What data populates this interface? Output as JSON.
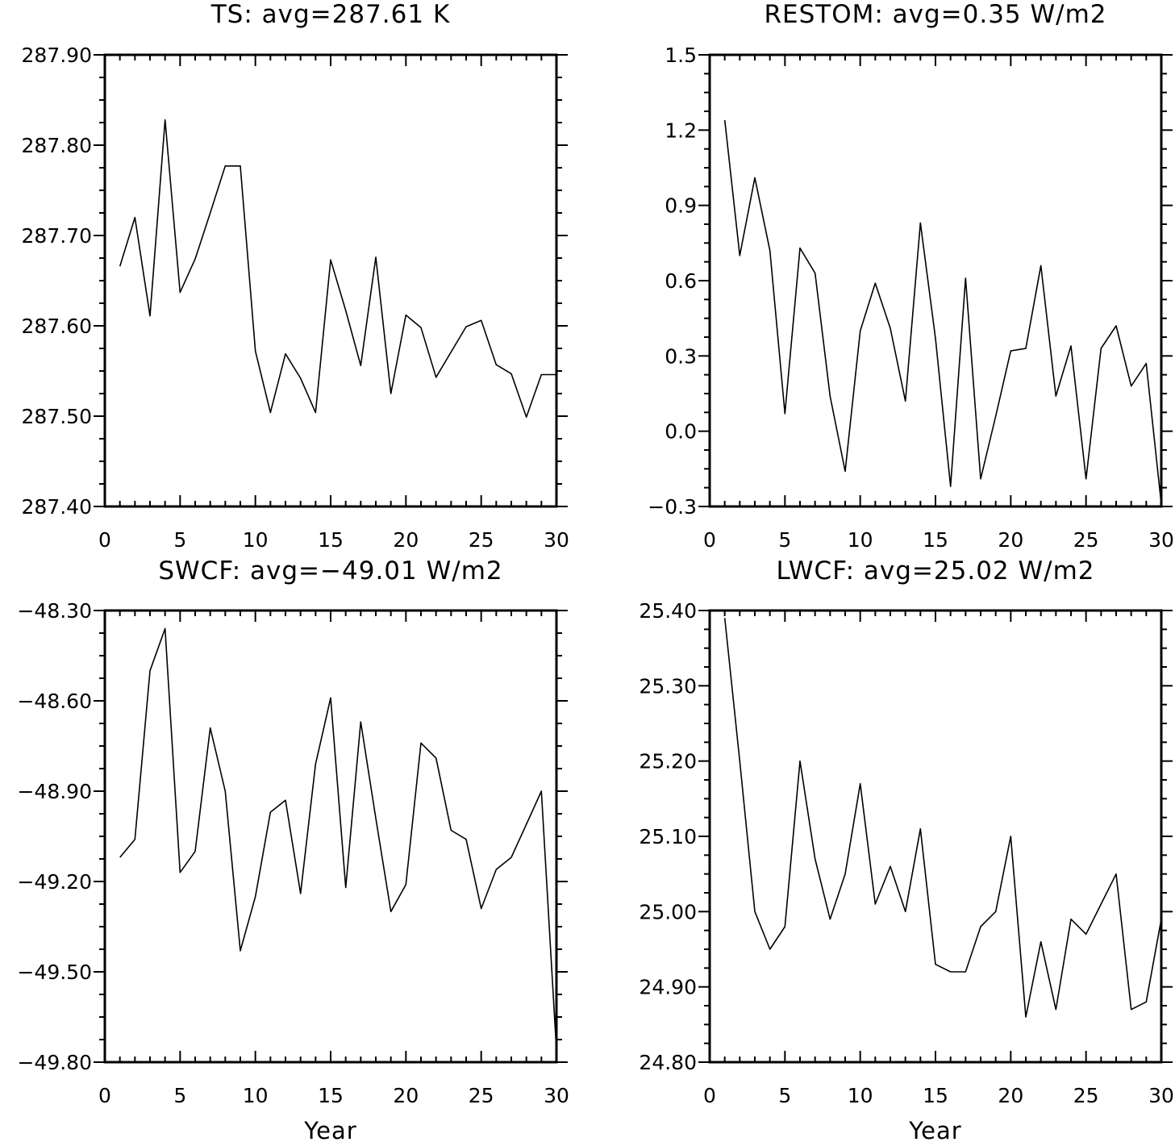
{
  "chart_data": [
    {
      "type": "line",
      "title": "TS: avg=287.61 K",
      "xlabel": "",
      "ylabel": "",
      "xlim": [
        0,
        30
      ],
      "ylim": [
        287.4,
        287.9
      ],
      "xticks": [
        "0",
        "5",
        "10",
        "15",
        "20",
        "25",
        "30"
      ],
      "yticks": [
        "287.40",
        "287.50",
        "287.60",
        "287.70",
        "287.80",
        "287.90"
      ],
      "grid": false,
      "x": [
        1,
        2,
        3,
        4,
        5,
        6,
        7,
        8,
        9,
        10,
        11,
        12,
        13,
        14,
        15,
        16,
        17,
        18,
        19,
        20,
        21,
        22,
        23,
        24,
        25,
        26,
        27,
        28,
        29,
        30
      ],
      "values": [
        287.666,
        287.72,
        287.611,
        287.828,
        287.637,
        287.674,
        287.725,
        287.777,
        287.777,
        287.572,
        287.504,
        287.569,
        287.542,
        287.504,
        287.673,
        287.617,
        287.556,
        287.676,
        287.525,
        287.612,
        287.598,
        287.543,
        287.571,
        287.599,
        287.606,
        287.557,
        287.547,
        287.499,
        287.546,
        287.546
      ]
    },
    {
      "type": "line",
      "title": "RESTOM: avg=0.35 W/m2",
      "xlabel": "",
      "ylabel": "",
      "xlim": [
        0,
        30
      ],
      "ylim": [
        -0.3,
        1.5
      ],
      "xticks": [
        "0",
        "5",
        "10",
        "15",
        "20",
        "25",
        "30"
      ],
      "yticks": [
        "−0.3",
        "0.0",
        "0.3",
        "0.6",
        "0.9",
        "1.2",
        "1.5"
      ],
      "grid": false,
      "x": [
        1,
        2,
        3,
        4,
        5,
        6,
        7,
        8,
        9,
        10,
        11,
        12,
        13,
        14,
        15,
        16,
        17,
        18,
        19,
        20,
        21,
        22,
        23,
        24,
        25,
        26,
        27,
        28,
        29,
        30
      ],
      "values": [
        1.24,
        0.7,
        1.01,
        0.72,
        0.07,
        0.73,
        0.63,
        0.14,
        -0.16,
        0.4,
        0.59,
        0.41,
        0.12,
        0.83,
        0.37,
        -0.22,
        0.61,
        -0.19,
        0.06,
        0.32,
        0.33,
        0.66,
        0.14,
        0.34,
        -0.19,
        0.33,
        0.42,
        0.18,
        0.27,
        -0.29
      ]
    },
    {
      "type": "line",
      "title": "SWCF: avg=−49.01 W/m2",
      "xlabel": "Year",
      "ylabel": "",
      "xlim": [
        0,
        30
      ],
      "ylim": [
        -49.8,
        -48.3
      ],
      "xticks": [
        "0",
        "5",
        "10",
        "15",
        "20",
        "25",
        "30"
      ],
      "yticks": [
        "−49.80",
        "−49.50",
        "−49.20",
        "−48.90",
        "−48.60",
        "−48.30"
      ],
      "grid": false,
      "x": [
        1,
        2,
        3,
        4,
        5,
        6,
        7,
        8,
        9,
        10,
        11,
        12,
        13,
        14,
        15,
        16,
        17,
        18,
        19,
        20,
        21,
        22,
        23,
        24,
        25,
        26,
        27,
        28,
        29,
        30
      ],
      "values": [
        -49.12,
        -49.06,
        -48.5,
        -48.36,
        -49.17,
        -49.1,
        -48.69,
        -48.9,
        -49.43,
        -49.25,
        -48.97,
        -48.93,
        -49.24,
        -48.81,
        -48.59,
        -49.22,
        -48.67,
        -48.99,
        -49.3,
        -49.21,
        -48.74,
        -48.79,
        -49.03,
        -49.06,
        -49.29,
        -49.16,
        -49.12,
        -49.01,
        -48.9,
        -49.76
      ]
    },
    {
      "type": "line",
      "title": "LWCF: avg=25.02 W/m2",
      "xlabel": "Year",
      "ylabel": "",
      "xlim": [
        0,
        30
      ],
      "ylim": [
        24.8,
        25.4
      ],
      "xticks": [
        "0",
        "5",
        "10",
        "15",
        "20",
        "25",
        "30"
      ],
      "yticks": [
        "24.80",
        "24.90",
        "25.00",
        "25.10",
        "25.20",
        "25.30",
        "25.40"
      ],
      "grid": false,
      "x": [
        1,
        2,
        3,
        4,
        5,
        6,
        7,
        8,
        9,
        10,
        11,
        12,
        13,
        14,
        15,
        16,
        17,
        18,
        19,
        20,
        21,
        22,
        23,
        24,
        25,
        26,
        27,
        28,
        29,
        30
      ],
      "values": [
        25.39,
        25.2,
        25.0,
        24.95,
        24.98,
        25.2,
        25.07,
        24.99,
        25.05,
        25.17,
        25.01,
        25.06,
        25.0,
        25.11,
        24.93,
        24.92,
        24.92,
        24.98,
        25.0,
        25.1,
        24.86,
        24.96,
        24.87,
        24.99,
        24.97,
        25.01,
        25.05,
        24.87,
        24.88,
        24.99
      ]
    }
  ]
}
